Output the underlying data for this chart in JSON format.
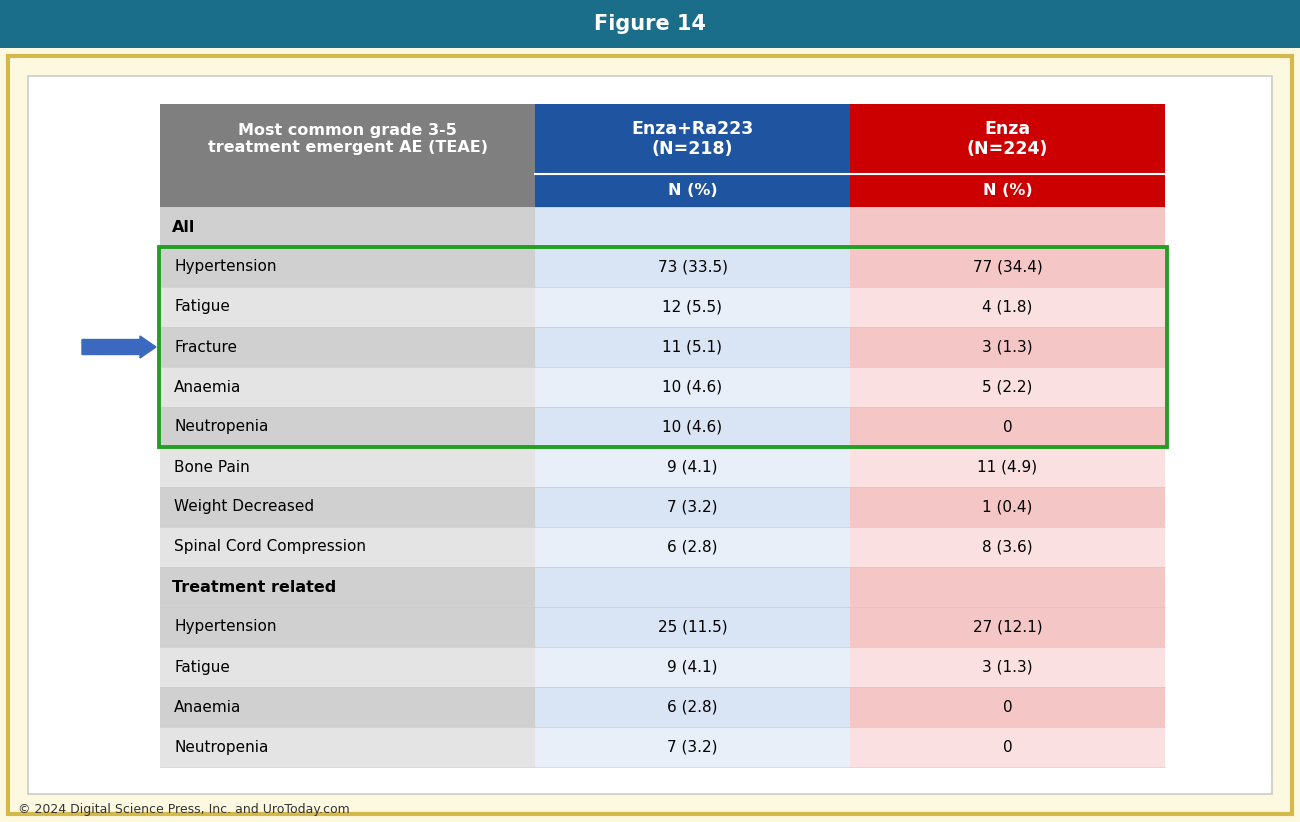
{
  "title": "Figure 14",
  "title_bg_color": "#1b6e8a",
  "title_text_color": "#ffffff",
  "outer_bg_color": "#fdf8e0",
  "outer_border_color": "#d4b84a",
  "inner_bg_color": "#ffffff",
  "inner_border_color": "#cccccc",
  "footer_text": "© 2024 Digital Science Press, Inc. and UroToday.com",
  "col0_header": "Most common grade 3-5\ntreatment emergent AE (TEAE)",
  "col1_header": "Enza+Ra223\n(N=218)",
  "col2_header": "Enza\n(N=224)",
  "sub_header": "N (%)",
  "col0_header_bg": "#7f7f7f",
  "col1_header_bg": "#1f55a0",
  "col2_header_bg": "#cc0000",
  "col_sub_header_bg1": "#1f55a0",
  "col_sub_header_bg2": "#cc0000",
  "header_text_color": "#ffffff",
  "row_label_bg_alt1": "#d0d0d0",
  "row_label_bg_alt2": "#e4e4e4",
  "row_data_bg_blue1": "#d9e4f5",
  "row_data_bg_blue2": "#e8eff9",
  "row_data_bg_pink1": "#f5c6c6",
  "row_data_bg_pink2": "#fae0e0",
  "section_header_bg": "#d0d0d0",
  "section_data_bg_blue": "#d9e4f5",
  "section_data_bg_pink": "#f5c6c6",
  "section_header_text": "#000000",
  "green_box_color": "#22a022",
  "arrow_color": "#3a69bf",
  "rows": [
    {
      "label": "All",
      "col1": "",
      "col2": "",
      "is_section": true
    },
    {
      "label": "Hypertension",
      "col1": "73 (33.5)",
      "col2": "77 (34.4)",
      "is_section": false,
      "green_box": true
    },
    {
      "label": "Fatigue",
      "col1": "12 (5.5)",
      "col2": "4 (1.8)",
      "is_section": false,
      "green_box": true
    },
    {
      "label": "Fracture",
      "col1": "11 (5.1)",
      "col2": "3 (1.3)",
      "is_section": false,
      "green_box": true,
      "arrow": true
    },
    {
      "label": "Anaemia",
      "col1": "10 (4.6)",
      "col2": "5 (2.2)",
      "is_section": false,
      "green_box": true
    },
    {
      "label": "Neutropenia",
      "col1": "10 (4.6)",
      "col2": "0",
      "is_section": false,
      "green_box": true
    },
    {
      "label": "Bone Pain",
      "col1": "9 (4.1)",
      "col2": "11 (4.9)",
      "is_section": false,
      "green_box": false
    },
    {
      "label": "Weight Decreased",
      "col1": "7 (3.2)",
      "col2": "1 (0.4)",
      "is_section": false,
      "green_box": false
    },
    {
      "label": "Spinal Cord Compression",
      "col1": "6 (2.8)",
      "col2": "8 (3.6)",
      "is_section": false,
      "green_box": false
    },
    {
      "label": "Treatment related",
      "col1": "",
      "col2": "",
      "is_section": true
    },
    {
      "label": "Hypertension",
      "col1": "25 (11.5)",
      "col2": "27 (12.1)",
      "is_section": false,
      "green_box": false
    },
    {
      "label": "Fatigue",
      "col1": "9 (4.1)",
      "col2": "3 (1.3)",
      "is_section": false,
      "green_box": false
    },
    {
      "label": "Anaemia",
      "col1": "6 (2.8)",
      "col2": "0",
      "is_section": false,
      "green_box": false
    },
    {
      "label": "Neutropenia",
      "col1": "7 (3.2)",
      "col2": "0",
      "is_section": false,
      "green_box": false
    }
  ]
}
